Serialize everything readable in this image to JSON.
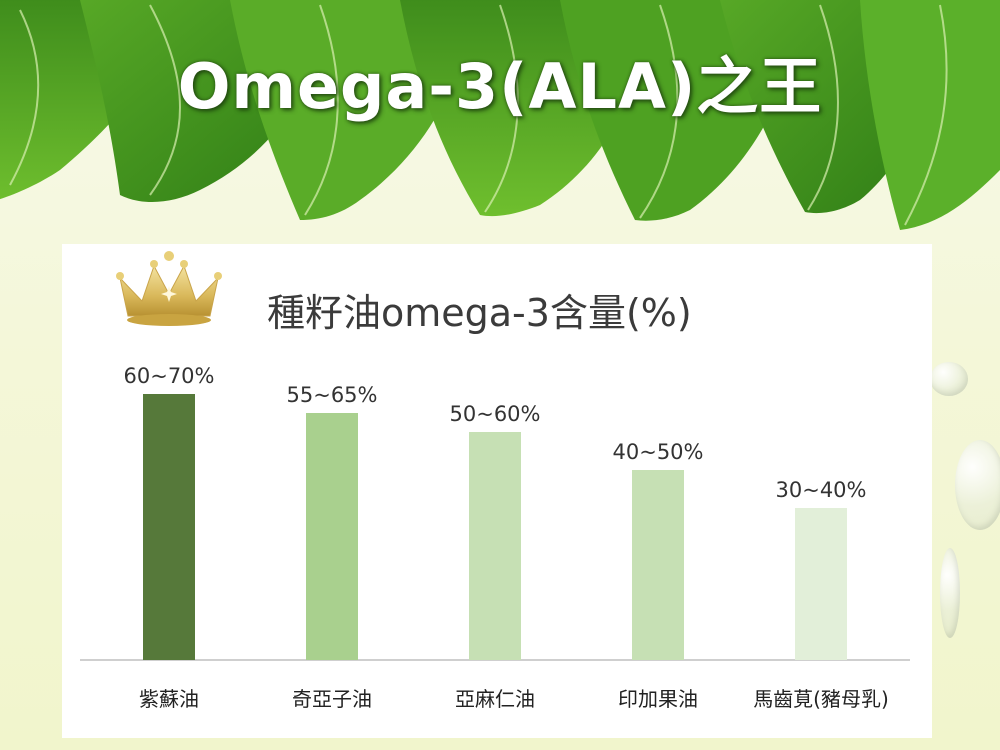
{
  "page": {
    "title": "Omega-3(ALA)之王"
  },
  "chart_data": {
    "type": "bar",
    "title": "種籽油omega-3含量(%)",
    "xlabel": "",
    "ylabel": "",
    "categories": [
      "紫蘇油",
      "奇亞子油",
      "亞麻仁油",
      "印加果油",
      "馬齒莧(豬母乳)"
    ],
    "data_labels": [
      "60~70%",
      "55~65%",
      "50~60%",
      "40~50%",
      "30~40%"
    ],
    "series": [
      {
        "values": [
          70,
          65,
          60,
          50,
          40
        ]
      }
    ],
    "bar_colors": [
      "#56793a",
      "#a9d08e",
      "#c6e0b4",
      "#c6e0b4",
      "#e2efd9"
    ],
    "ylim": [
      0,
      70
    ],
    "grid": false,
    "legend": "none"
  },
  "icons": {
    "crown": "crown-icon",
    "leaves": "leaf-decoration-icon"
  }
}
